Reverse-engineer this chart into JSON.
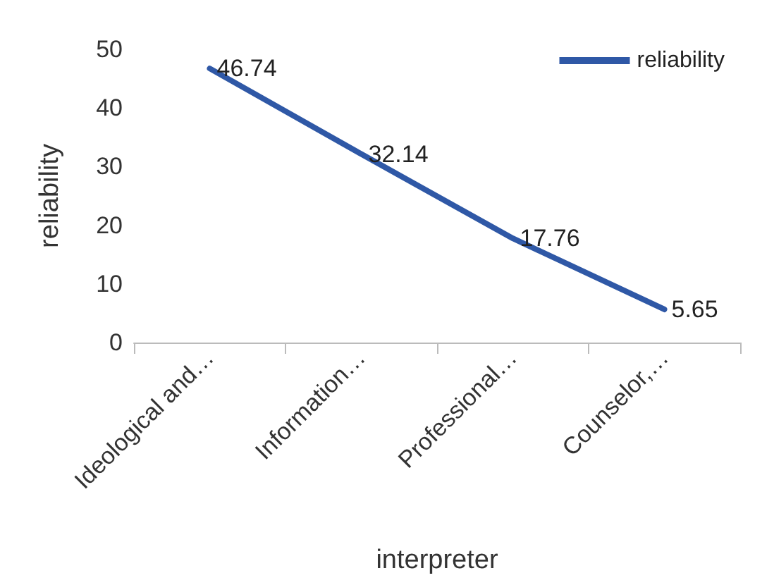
{
  "chart_data": {
    "type": "line",
    "xlabel": "interpreter",
    "ylabel": "reliability",
    "categories": [
      "Ideological and…",
      "Information…",
      "Professional…",
      "Counselor,…"
    ],
    "series": [
      {
        "name": "reliability",
        "color": "#2f58a6",
        "values": [
          46.74,
          32.14,
          17.76,
          5.65
        ]
      }
    ],
    "ylim": [
      0,
      50
    ],
    "yticks": [
      0,
      10,
      20,
      30,
      40,
      50
    ],
    "grid": false,
    "legend": "top right",
    "marker": "none",
    "line_style": "solid",
    "data_labels": true
  }
}
